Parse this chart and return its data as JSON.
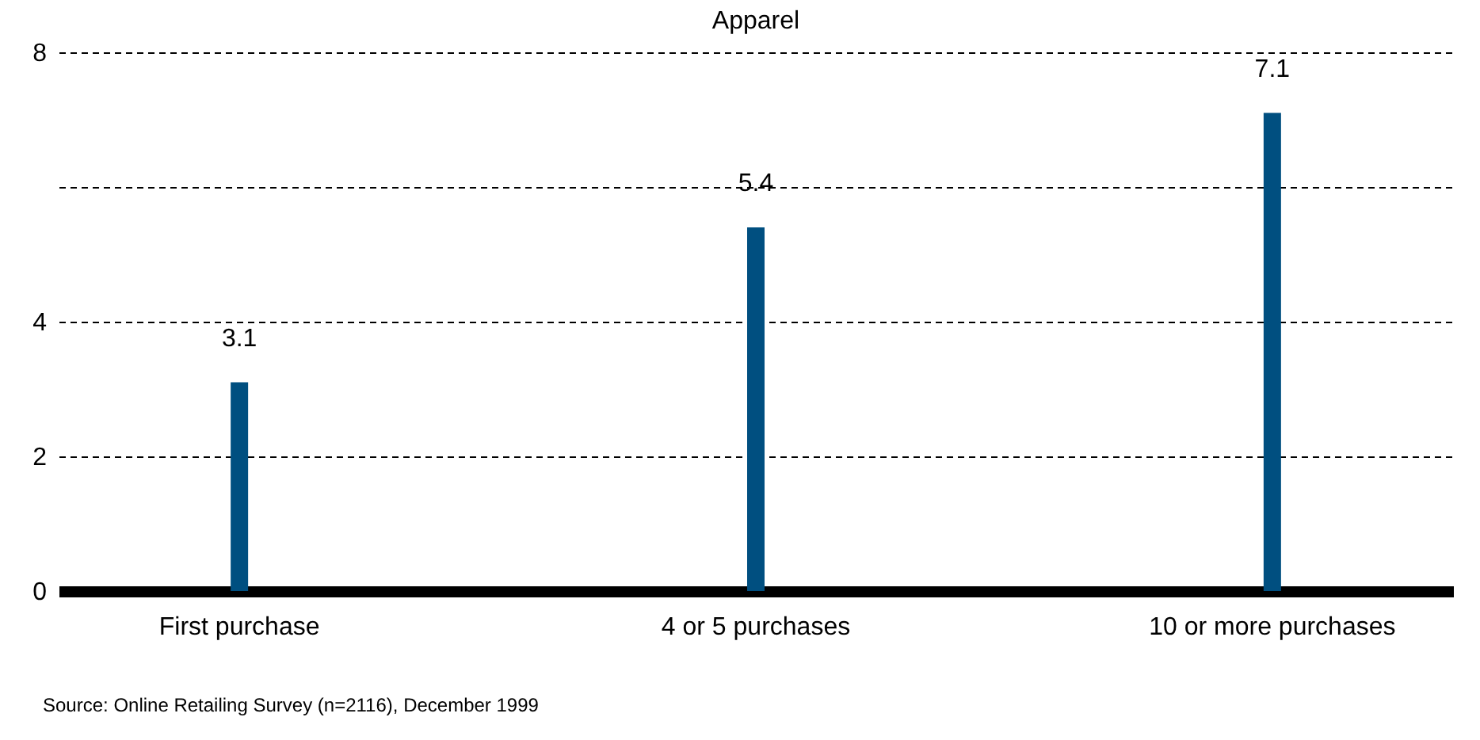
{
  "chart_data": {
    "type": "bar",
    "title": "Apparel",
    "categories": [
      "First purchase",
      "4 or 5 purchases",
      "10 or more purchases"
    ],
    "values": [
      3.1,
      5.4,
      7.1
    ],
    "color": "#004f80",
    "ylim": [
      0,
      8
    ],
    "yticks": [
      0,
      2,
      4,
      {
        "value": 6,
        "label": null
      },
      8
    ],
    "grid": "y",
    "data_labels": true,
    "annotations": [
      "Source: Online Retailing Survey (n=2116), December 1999"
    ]
  }
}
